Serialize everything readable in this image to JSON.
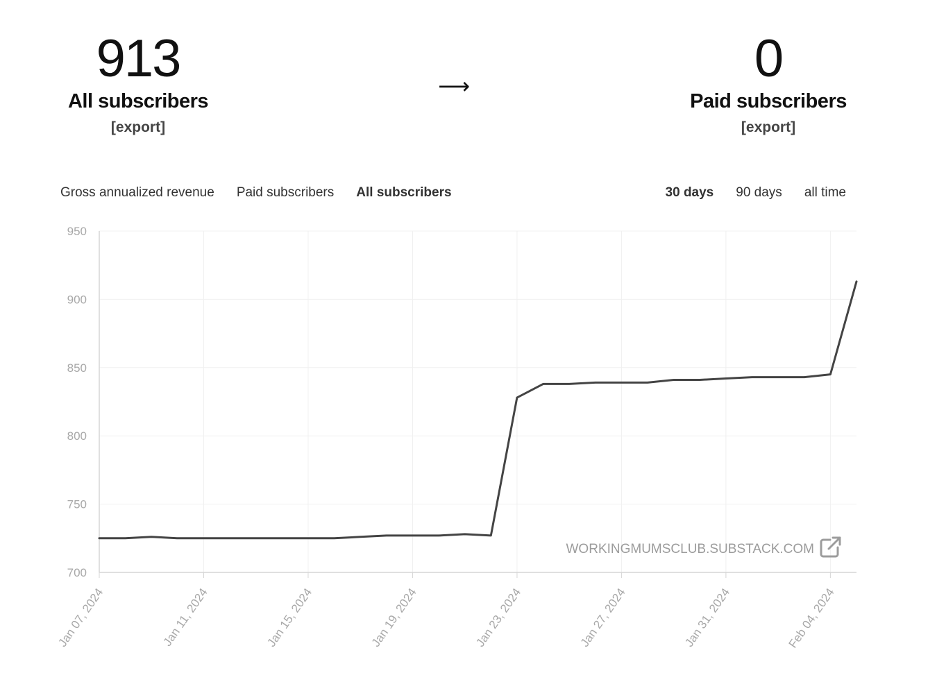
{
  "summary": {
    "left": {
      "number": "913",
      "label": "All subscribers",
      "export": "[export]"
    },
    "arrow": "⟶",
    "right": {
      "number": "0",
      "label": "Paid subscribers",
      "export": "[export]"
    }
  },
  "metric_tabs": [
    {
      "label": "Gross annualized revenue",
      "active": false
    },
    {
      "label": "Paid subscribers",
      "active": false
    },
    {
      "label": "All subscribers",
      "active": true
    }
  ],
  "range_tabs": [
    {
      "label": "30 days",
      "active": true
    },
    {
      "label": "90 days",
      "active": false
    },
    {
      "label": "all time",
      "active": false
    }
  ],
  "watermark": {
    "text": "WORKINGMUMSCLUB.SUBSTACK.COM",
    "icon": "external-link-icon"
  },
  "colors": {
    "line": "#444444",
    "grid": "#f0f0f0",
    "axis": "#d6d6d6",
    "tick": "#a8a8a8"
  },
  "chart_data": {
    "type": "line",
    "title": "",
    "xlabel": "",
    "ylabel": "",
    "ylim": [
      700,
      950
    ],
    "yticks": [
      700,
      750,
      800,
      850,
      900,
      950
    ],
    "xticks": [
      "Jan 07, 2024",
      "Jan 11, 2024",
      "Jan 15, 2024",
      "Jan 19, 2024",
      "Jan 23, 2024",
      "Jan 27, 2024",
      "Jan 31, 2024",
      "Feb 04, 2024"
    ],
    "grid": true,
    "x": [
      "2024-01-07",
      "2024-01-08",
      "2024-01-09",
      "2024-01-10",
      "2024-01-11",
      "2024-01-12",
      "2024-01-13",
      "2024-01-14",
      "2024-01-15",
      "2024-01-16",
      "2024-01-17",
      "2024-01-18",
      "2024-01-19",
      "2024-01-20",
      "2024-01-21",
      "2024-01-22",
      "2024-01-23",
      "2024-01-24",
      "2024-01-25",
      "2024-01-26",
      "2024-01-27",
      "2024-01-28",
      "2024-01-29",
      "2024-01-30",
      "2024-01-31",
      "2024-02-01",
      "2024-02-02",
      "2024-02-03",
      "2024-02-04",
      "2024-02-05"
    ],
    "series": [
      {
        "values": [
          725,
          725,
          726,
          725,
          725,
          725,
          725,
          725,
          725,
          725,
          726,
          727,
          727,
          727,
          728,
          727,
          828,
          838,
          838,
          839,
          839,
          839,
          841,
          841,
          842,
          843,
          843,
          843,
          845,
          913
        ]
      }
    ]
  }
}
